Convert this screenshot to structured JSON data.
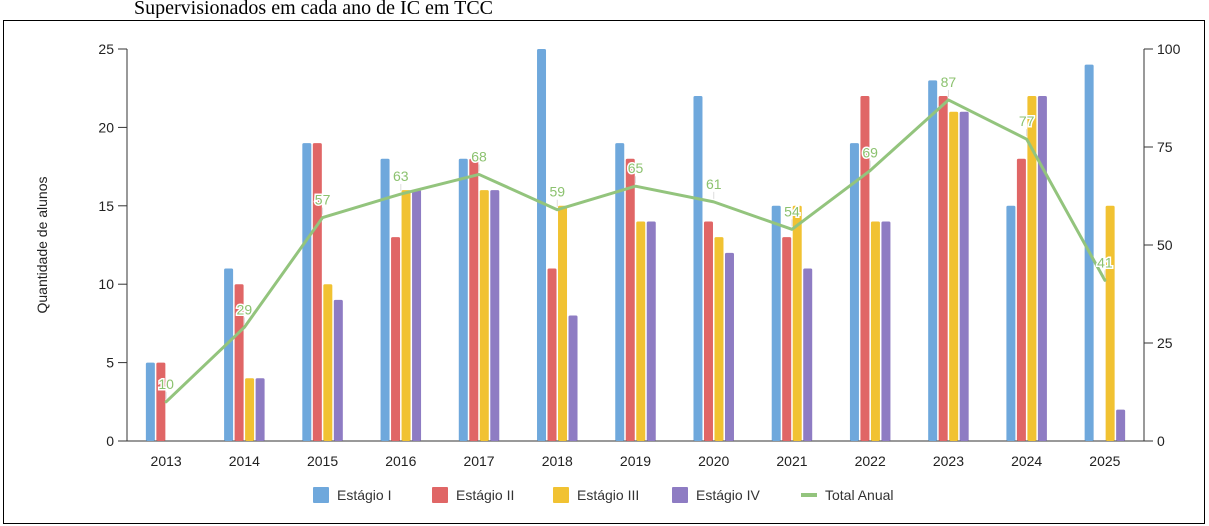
{
  "caption": "Supervisionados em cada ano de IC em TCC",
  "chart_data": {
    "type": "bar",
    "categories": [
      "2013",
      "2014",
      "2015",
      "2016",
      "2017",
      "2018",
      "2019",
      "2020",
      "2021",
      "2022",
      "2023",
      "2024",
      "2025"
    ],
    "series": [
      {
        "name": "Estágio I",
        "color": "#6fa8dc",
        "values": [
          5,
          11,
          19,
          18,
          18,
          25,
          19,
          22,
          15,
          19,
          23,
          15,
          24
        ]
      },
      {
        "name": "Estágio II",
        "color": "#e06666",
        "values": [
          5,
          10,
          19,
          13,
          18,
          11,
          18,
          14,
          13,
          22,
          22,
          18,
          0
        ]
      },
      {
        "name": "Estágio III",
        "color": "#f1c232",
        "values": [
          0,
          4,
          10,
          16,
          16,
          15,
          14,
          13,
          15,
          14,
          21,
          22,
          15
        ]
      },
      {
        "name": "Estágio IV",
        "color": "#8e7cc3",
        "values": [
          0,
          4,
          9,
          16,
          16,
          8,
          14,
          12,
          11,
          14,
          21,
          22,
          2
        ]
      }
    ],
    "line": {
      "name": "Total Anual",
      "color": "#93c47d",
      "axis": "right",
      "values": [
        10,
        29,
        57,
        63,
        68,
        59,
        65,
        61,
        54,
        69,
        87,
        77,
        41
      ]
    },
    "ylabel": "Quantidade de alunos",
    "ylim": [
      0,
      25
    ],
    "yticks": [
      0,
      5,
      10,
      15,
      20,
      25
    ],
    "y2lim": [
      0,
      100
    ],
    "y2ticks": [
      0,
      25,
      50,
      75,
      100
    ],
    "grid": false,
    "legend_position": "bottom"
  }
}
